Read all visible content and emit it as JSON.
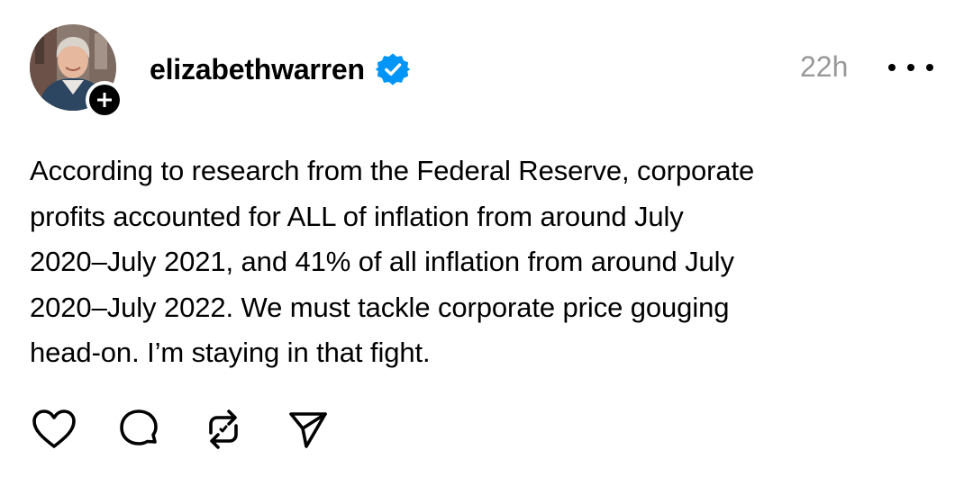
{
  "post": {
    "author": {
      "username": "elizabethwarren",
      "verified": true,
      "avatar": "profile-photo",
      "follow_badge_symbol": "+"
    },
    "timestamp": "22h",
    "more_icon": "more-horizontal-icon",
    "text": "According to research from the Federal Reserve, corporate\nprofits accounted for ALL of inflation from around July\n2020–July 2021, and 41% of all inflation from around July\n2020–July 2022. We must tackle corporate price gouging\nhead-on. I’m staying in that fight.",
    "actions": [
      {
        "name": "like",
        "icon": "heart-icon"
      },
      {
        "name": "reply",
        "icon": "comment-icon"
      },
      {
        "name": "repost",
        "icon": "repost-icon"
      },
      {
        "name": "share",
        "icon": "send-icon"
      }
    ]
  },
  "colors": {
    "verified_badge": "#0095F6",
    "timestamp": "#999999",
    "text": "#000000"
  }
}
